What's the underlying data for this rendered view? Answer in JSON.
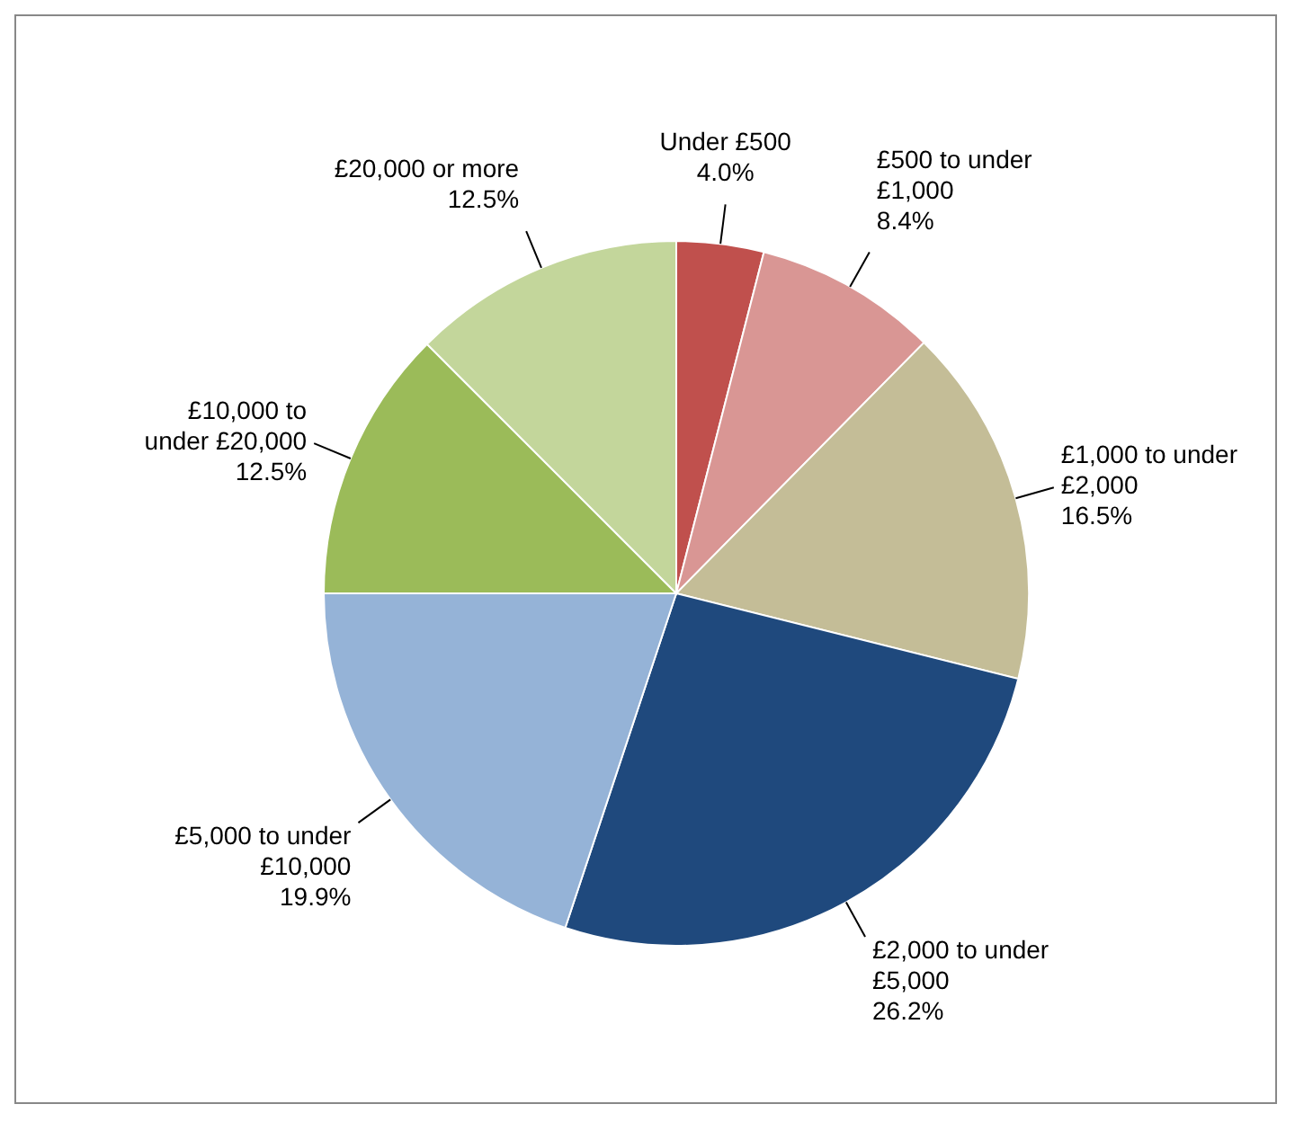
{
  "chart_data": {
    "type": "pie",
    "categories": [
      "Under £500",
      "£500 to under £1,000",
      "£1,000 to under £2,000",
      "£2,000 to under £5,000",
      "£5,000 to under £10,000",
      "£10,000 to under £20,000",
      "£20,000 or more"
    ],
    "values": [
      4.0,
      8.4,
      16.5,
      26.2,
      19.9,
      12.5,
      12.5
    ],
    "colors": [
      "#c0504d",
      "#d99694",
      "#c4bd97",
      "#1f497d",
      "#95b3d7",
      "#9bbb59",
      "#c3d69b"
    ],
    "value_labels": [
      "4.0%",
      "8.4%",
      "16.5%",
      "26.2%",
      "19.9%",
      "12.5%",
      "12.5%"
    ],
    "legend": false
  }
}
